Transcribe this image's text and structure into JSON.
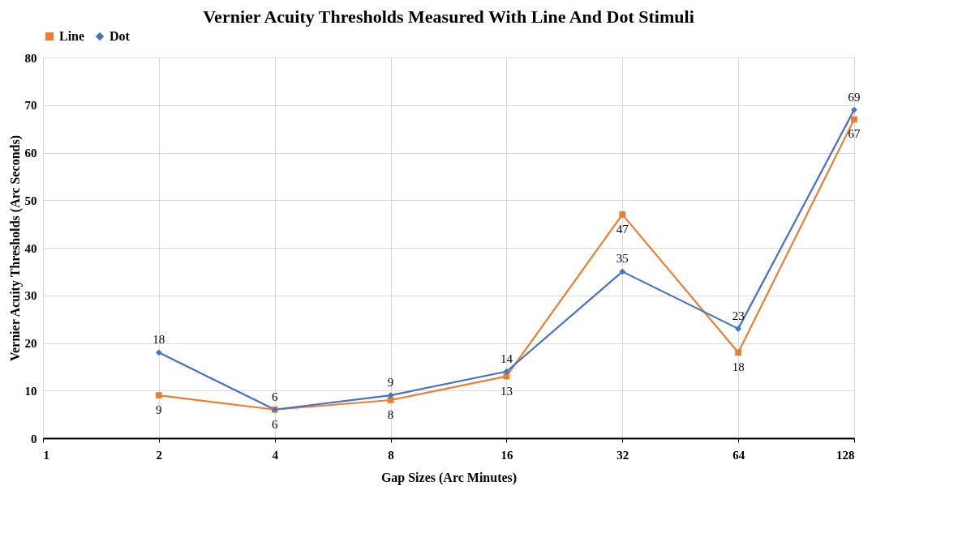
{
  "chart_data": {
    "type": "line",
    "title": "Vernier Acuity Thresholds Measured With Line And Dot Stimuli",
    "xlabel": "Gap Sizes (Arc Minutes)",
    "ylabel": "Vernier Acuity Thresholds (Arc Seconds)",
    "x": [
      2,
      4,
      8,
      16,
      32,
      64,
      128
    ],
    "series": [
      {
        "name": "Line",
        "color": "#ed7d31",
        "marker": "square",
        "values": [
          9,
          6,
          8,
          13,
          47,
          18,
          67
        ]
      },
      {
        "name": "Dot",
        "color": "#4472c4",
        "marker": "diamond",
        "values": [
          18,
          6,
          9,
          14,
          35,
          23,
          69
        ]
      }
    ],
    "log": "x",
    "xlim": [
      1,
      128
    ],
    "xticks": [
      1,
      2,
      4,
      8,
      16,
      32,
      64,
      128
    ],
    "ylim": [
      0,
      80
    ],
    "yticks": [
      0,
      10,
      20,
      30,
      40,
      50,
      60,
      70,
      80
    ],
    "grid": true,
    "legend": "top",
    "data_labels": true,
    "line_style": "solid"
  }
}
